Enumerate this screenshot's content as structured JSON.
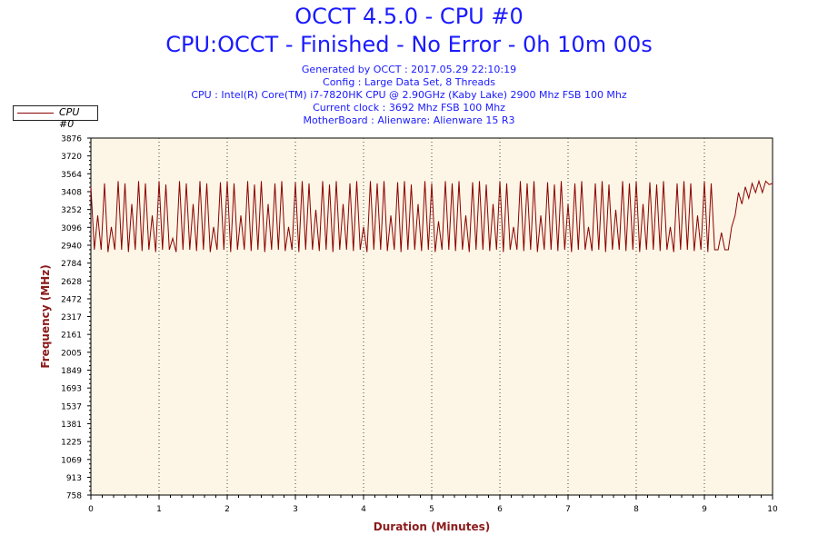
{
  "header": {
    "title": "OCCT 4.5.0 - CPU #0",
    "subtitle": "CPU:OCCT - Finished - No Error - 0h 10m 00s",
    "info_lines": [
      "Generated by OCCT : 2017.05.29 22:10:19",
      "Config : Large Data Set, 8 Threads",
      "CPU : Intel(R) Core(TM) i7-7820HK CPU @ 2.90GHz (Kaby Lake) 2900 Mhz FSB 100 Mhz",
      "Current clock : 3692 Mhz FSB 100 Mhz",
      "MotherBoard : Alienware: Alienware 15 R3"
    ]
  },
  "legend": {
    "label": "CPU #0"
  },
  "colors": {
    "title": "#1a1aff",
    "axis_label": "#8b1a1a",
    "series": "#8b0000",
    "plot_bg": "#fdf6e6",
    "grid": "#444444"
  },
  "chart_data": {
    "type": "line",
    "xlabel": "Duration (Minutes)",
    "ylabel": "Frequency (MHz)",
    "xlim": [
      0,
      10
    ],
    "ylim": [
      758,
      3876
    ],
    "xticks": [
      0,
      1,
      2,
      3,
      4,
      5,
      6,
      7,
      8,
      9,
      10
    ],
    "yticks": [
      758,
      913,
      1069,
      1225,
      1381,
      1537,
      1693,
      1849,
      2005,
      2161,
      2317,
      2472,
      2628,
      2784,
      2940,
      3096,
      3252,
      3408,
      3564,
      3720,
      3876
    ],
    "grid": "vertical dotted",
    "legend_position": "top-left",
    "series": [
      {
        "name": "CPU #0",
        "x": [
          0,
          0.05,
          0.1,
          0.15,
          0.2,
          0.25,
          0.3,
          0.35,
          0.4,
          0.45,
          0.5,
          0.55,
          0.6,
          0.65,
          0.7,
          0.75,
          0.8,
          0.85,
          0.9,
          0.95,
          1,
          1.05,
          1.1,
          1.15,
          1.2,
          1.25,
          1.3,
          1.35,
          1.4,
          1.45,
          1.5,
          1.55,
          1.6,
          1.65,
          1.7,
          1.75,
          1.8,
          1.85,
          1.9,
          1.95,
          2,
          2.05,
          2.1,
          2.15,
          2.2,
          2.25,
          2.3,
          2.35,
          2.4,
          2.45,
          2.5,
          2.55,
          2.6,
          2.65,
          2.7,
          2.75,
          2.8,
          2.85,
          2.9,
          2.95,
          3,
          3.05,
          3.1,
          3.15,
          3.2,
          3.25,
          3.3,
          3.35,
          3.4,
          3.45,
          3.5,
          3.55,
          3.6,
          3.65,
          3.7,
          3.75,
          3.8,
          3.85,
          3.9,
          3.95,
          4,
          4.05,
          4.1,
          4.15,
          4.2,
          4.25,
          4.3,
          4.35,
          4.4,
          4.45,
          4.5,
          4.55,
          4.6,
          4.65,
          4.7,
          4.75,
          4.8,
          4.85,
          4.9,
          4.95,
          5,
          5.05,
          5.1,
          5.15,
          5.2,
          5.25,
          5.3,
          5.35,
          5.4,
          5.45,
          5.5,
          5.55,
          5.6,
          5.65,
          5.7,
          5.75,
          5.8,
          5.85,
          5.9,
          5.95,
          6,
          6.05,
          6.1,
          6.15,
          6.2,
          6.25,
          6.3,
          6.35,
          6.4,
          6.45,
          6.5,
          6.55,
          6.6,
          6.65,
          6.7,
          6.75,
          6.8,
          6.85,
          6.9,
          6.95,
          7,
          7.05,
          7.1,
          7.15,
          7.2,
          7.25,
          7.3,
          7.35,
          7.4,
          7.45,
          7.5,
          7.55,
          7.6,
          7.65,
          7.7,
          7.75,
          7.8,
          7.85,
          7.9,
          7.95,
          8,
          8.05,
          8.1,
          8.15,
          8.2,
          8.25,
          8.3,
          8.35,
          8.4,
          8.45,
          8.5,
          8.55,
          8.6,
          8.65,
          8.7,
          8.75,
          8.8,
          8.85,
          8.9,
          8.95,
          9,
          9.05,
          9.1,
          9.15,
          9.2,
          9.25,
          9.3,
          9.35,
          9.4,
          9.45,
          9.5,
          9.55,
          9.6,
          9.65,
          9.7,
          9.75,
          9.8,
          9.85,
          9.9,
          9.95,
          10
        ],
        "values": [
          3450,
          2900,
          3200,
          2900,
          3480,
          2880,
          3100,
          2900,
          3500,
          2900,
          3480,
          2880,
          3300,
          2900,
          3500,
          2890,
          3480,
          2900,
          3200,
          2880,
          3500,
          2900,
          3470,
          2900,
          3000,
          2880,
          3500,
          2900,
          3480,
          2900,
          3300,
          2890,
          3500,
          2900,
          3480,
          2880,
          3100,
          2900,
          3490,
          2900,
          3500,
          2880,
          3480,
          2900,
          3200,
          2900,
          3500,
          2890,
          3470,
          2900,
          3500,
          2880,
          3300,
          2900,
          3480,
          2900,
          3500,
          2890,
          3100,
          2900,
          3490,
          2880,
          3500,
          2900,
          3480,
          2900,
          3250,
          2890,
          3500,
          2900,
          3470,
          2880,
          3500,
          2900,
          3300,
          2900,
          3480,
          2890,
          3500,
          2900,
          3100,
          2880,
          3500,
          2900,
          3480,
          2900,
          3500,
          2890,
          3200,
          2900,
          3490,
          2880,
          3500,
          2900,
          3470,
          2900,
          3300,
          2890,
          3500,
          2900,
          3480,
          2880,
          3150,
          2900,
          3500,
          2900,
          3480,
          2890,
          3500,
          2900,
          3200,
          2880,
          3490,
          2900,
          3500,
          2900,
          3470,
          2890,
          3300,
          2900,
          3500,
          2880,
          3480,
          2900,
          3100,
          2900,
          3500,
          2890,
          3480,
          2900,
          3500,
          2880,
          3200,
          2900,
          3490,
          2900,
          3470,
          2890,
          3500,
          2900,
          3300,
          2880,
          3480,
          2900,
          3500,
          2900,
          3100,
          2890,
          3480,
          2900,
          3500,
          2880,
          3470,
          2900,
          3250,
          2900,
          3500,
          2890,
          3480,
          2900,
          3500,
          2880,
          3300,
          2900,
          3490,
          2900,
          3470,
          2890,
          3500,
          2900,
          3100,
          2880,
          3480,
          2900,
          3500,
          2900,
          3480,
          2890,
          3200,
          2900,
          3500,
          2880,
          3480,
          2900,
          2900,
          3050,
          2900,
          2900,
          3100,
          3200,
          3400,
          3300,
          3450,
          3350,
          3480,
          3400,
          3500,
          3400,
          3500,
          3470,
          3480
        ]
      }
    ]
  }
}
